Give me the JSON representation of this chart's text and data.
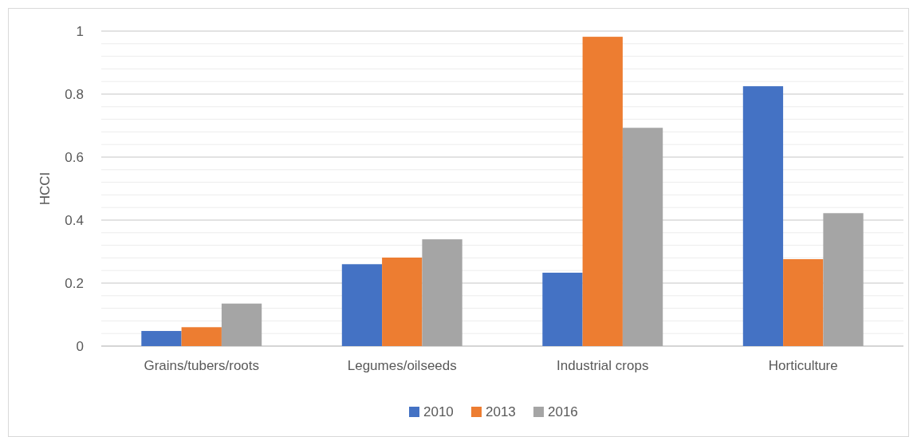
{
  "chart_data": {
    "type": "bar",
    "ylabel": "HCCI",
    "categories": [
      "Grains/tubers/roots",
      "Legumes/oilseeds",
      "Industrial crops",
      "Horticulture"
    ],
    "series": [
      {
        "name": "2010",
        "color": "#4472c4",
        "values": [
          0.048,
          0.26,
          0.233,
          0.825
        ]
      },
      {
        "name": "2013",
        "color": "#ed7d31",
        "values": [
          0.06,
          0.281,
          0.982,
          0.276
        ]
      },
      {
        "name": "2016",
        "color": "#a5a5a5",
        "values": [
          0.135,
          0.339,
          0.693,
          0.422
        ]
      }
    ],
    "ylim": [
      0,
      1
    ],
    "yticks": [
      0,
      {
        "value": 0.04,
        "label": null
      },
      {
        "value": 0.08,
        "label": null
      },
      {
        "value": 0.12,
        "label": null
      },
      {
        "value": 0.16,
        "label": null
      },
      0.2,
      {
        "value": 0.24,
        "label": null
      },
      {
        "value": 0.28,
        "label": null
      },
      {
        "value": 0.32,
        "label": null
      },
      {
        "value": 0.36,
        "label": null
      },
      0.4,
      {
        "value": 0.44,
        "label": null
      },
      {
        "value": 0.48,
        "label": null
      },
      {
        "value": 0.52,
        "label": null
      },
      {
        "value": 0.56,
        "label": null
      },
      0.6,
      {
        "value": 0.64,
        "label": null
      },
      {
        "value": 0.68,
        "label": null
      },
      {
        "value": 0.72,
        "label": null
      },
      {
        "value": 0.76,
        "label": null
      },
      0.8,
      {
        "value": 0.84,
        "label": null
      },
      {
        "value": 0.88,
        "label": null
      },
      {
        "value": 0.92,
        "label": null
      },
      {
        "value": 0.96,
        "label": null
      },
      1
    ],
    "grid": true,
    "legend": "bottom"
  }
}
